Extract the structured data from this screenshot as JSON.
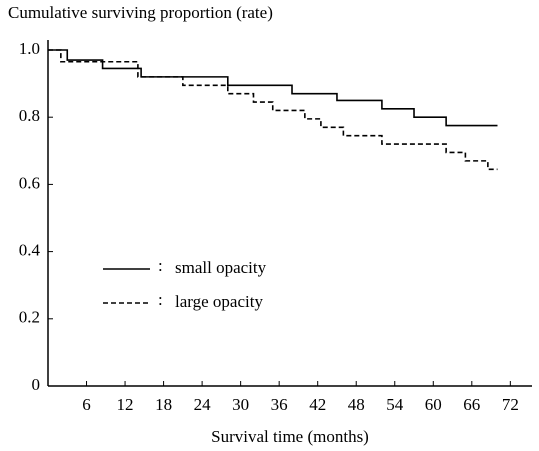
{
  "chart_data": {
    "type": "line",
    "drawstyle": "steps-post",
    "title": "Cumulative surviving proportion (rate)",
    "x_label": "Survival time (months)",
    "xlim": [
      0,
      75
    ],
    "xticks": [
      6,
      12,
      18,
      24,
      30,
      36,
      42,
      48,
      54,
      60,
      66,
      72
    ],
    "ylim": [
      0,
      1
    ],
    "yticks": [
      0,
      0.2,
      0.4,
      0.6,
      0.8,
      {
        "value": 1,
        "label": "1.0"
      }
    ],
    "legend_separator": ":",
    "series": [
      {
        "name": "small opacity",
        "color": "#000000",
        "dash": "solid",
        "x": [
          0,
          3,
          8.5,
          14.5,
          28,
          38,
          45,
          52,
          57,
          62,
          70
        ],
        "values": [
          1.0,
          0.97,
          0.945,
          0.92,
          0.895,
          0.87,
          0.85,
          0.825,
          0.8,
          0.775,
          0.775
        ]
      },
      {
        "name": "large opacity",
        "color": "#000000",
        "dash": "dashed",
        "x": [
          0,
          2,
          14,
          21,
          28,
          32,
          35,
          40,
          42.5,
          46,
          52,
          62,
          65,
          68.5,
          70
        ],
        "values": [
          1.0,
          0.965,
          0.92,
          0.895,
          0.87,
          0.845,
          0.82,
          0.795,
          0.77,
          0.745,
          0.72,
          0.695,
          0.67,
          0.645,
          0.645
        ]
      }
    ]
  }
}
